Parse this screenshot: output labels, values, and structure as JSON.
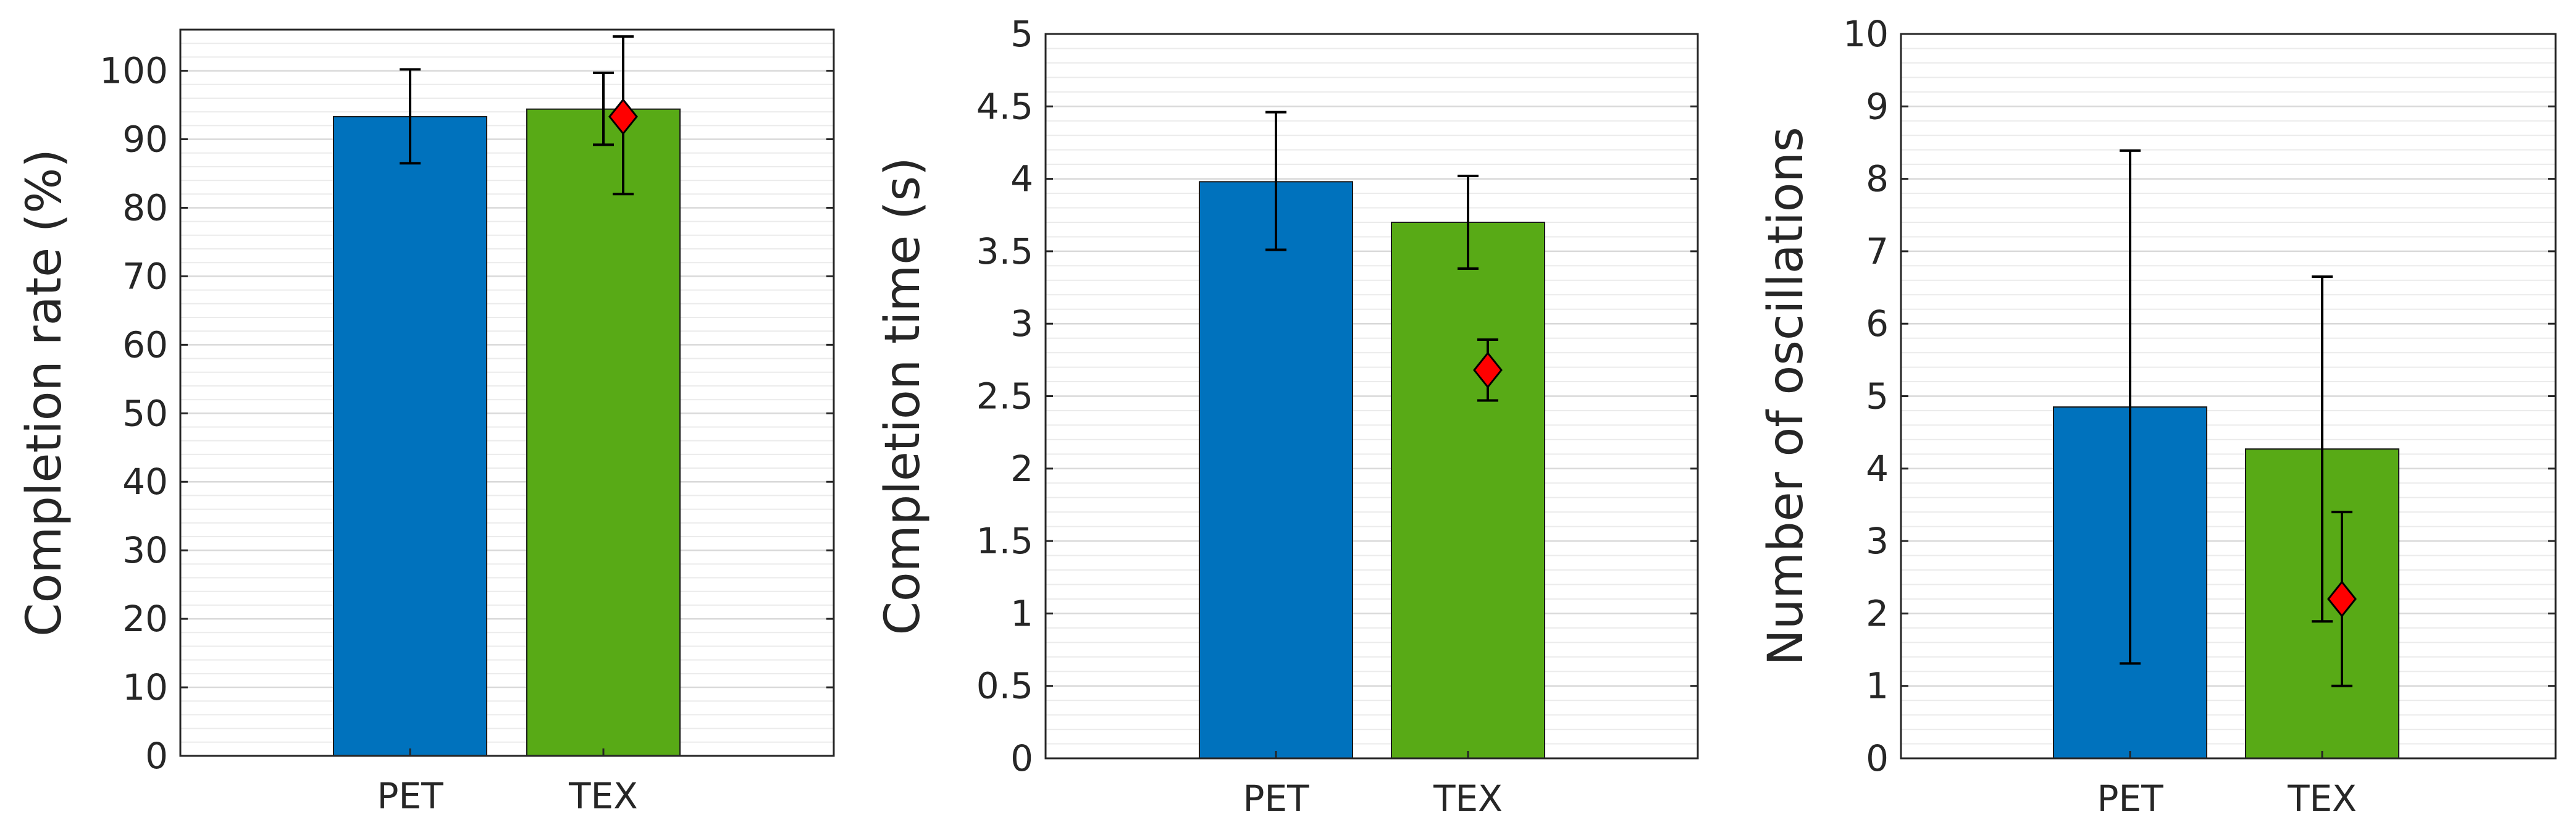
{
  "colors": {
    "pet_bar": "#0072BD",
    "tex_bar": "#58AA16",
    "marker": "#FF0000",
    "axis": "#262626",
    "minor_grid": "#EBEBEB",
    "major_grid": "#D9D9D9"
  },
  "chart_data": [
    {
      "type": "bar",
      "categories": [
        "PET",
        "TEX"
      ],
      "values": [
        93.3,
        94.4
      ],
      "error_bars": [
        [
          86.5,
          100.2
        ],
        [
          89.2,
          99.7
        ]
      ],
      "marker": {
        "category": "TEX",
        "value": 93.3,
        "error": [
          82.0,
          105.0
        ],
        "shape": "diamond"
      },
      "ylabel": "Completion rate (%)",
      "ylim": [
        0,
        106
      ],
      "yticks": [
        0,
        10,
        20,
        30,
        40,
        50,
        60,
        70,
        80,
        90,
        100
      ],
      "ytick_labels": [
        "0",
        "10",
        "20",
        "30",
        "40",
        "50",
        "60",
        "70",
        "80",
        "90",
        "100"
      ],
      "minor_grid_step": 2,
      "grid": true
    },
    {
      "type": "bar",
      "categories": [
        "PET",
        "TEX"
      ],
      "values": [
        3.98,
        3.7
      ],
      "error_bars": [
        [
          3.51,
          4.46
        ],
        [
          3.38,
          4.02
        ]
      ],
      "marker": {
        "category": "TEX",
        "value": 2.68,
        "error": [
          2.47,
          2.89
        ],
        "shape": "diamond"
      },
      "ylabel": "Completion time (s)",
      "ylim": [
        0,
        5
      ],
      "yticks": [
        0,
        0.5,
        1,
        1.5,
        2,
        2.5,
        3,
        3.5,
        4,
        4.5,
        5
      ],
      "ytick_labels": [
        "0",
        "0.5",
        "1",
        "1.5",
        "2",
        "2.5",
        "3",
        "3.5",
        "4",
        "4.5",
        "5"
      ],
      "minor_grid_step": 0.1,
      "grid": true
    },
    {
      "type": "bar",
      "categories": [
        "PET",
        "TEX"
      ],
      "values": [
        4.85,
        4.27
      ],
      "error_bars": [
        [
          1.31,
          8.39
        ],
        [
          1.89,
          6.65
        ]
      ],
      "marker": {
        "category": "TEX",
        "value": 2.2,
        "error": [
          1.0,
          3.4
        ],
        "shape": "diamond"
      },
      "ylabel": "Number of oscillations",
      "ylim": [
        0,
        10
      ],
      "yticks": [
        0,
        1,
        2,
        3,
        4,
        5,
        6,
        7,
        8,
        9,
        10
      ],
      "ytick_labels": [
        "0",
        "1",
        "2",
        "3",
        "4",
        "5",
        "6",
        "7",
        "8",
        "9",
        "10"
      ],
      "minor_grid_step": 0.2,
      "grid": true
    }
  ]
}
